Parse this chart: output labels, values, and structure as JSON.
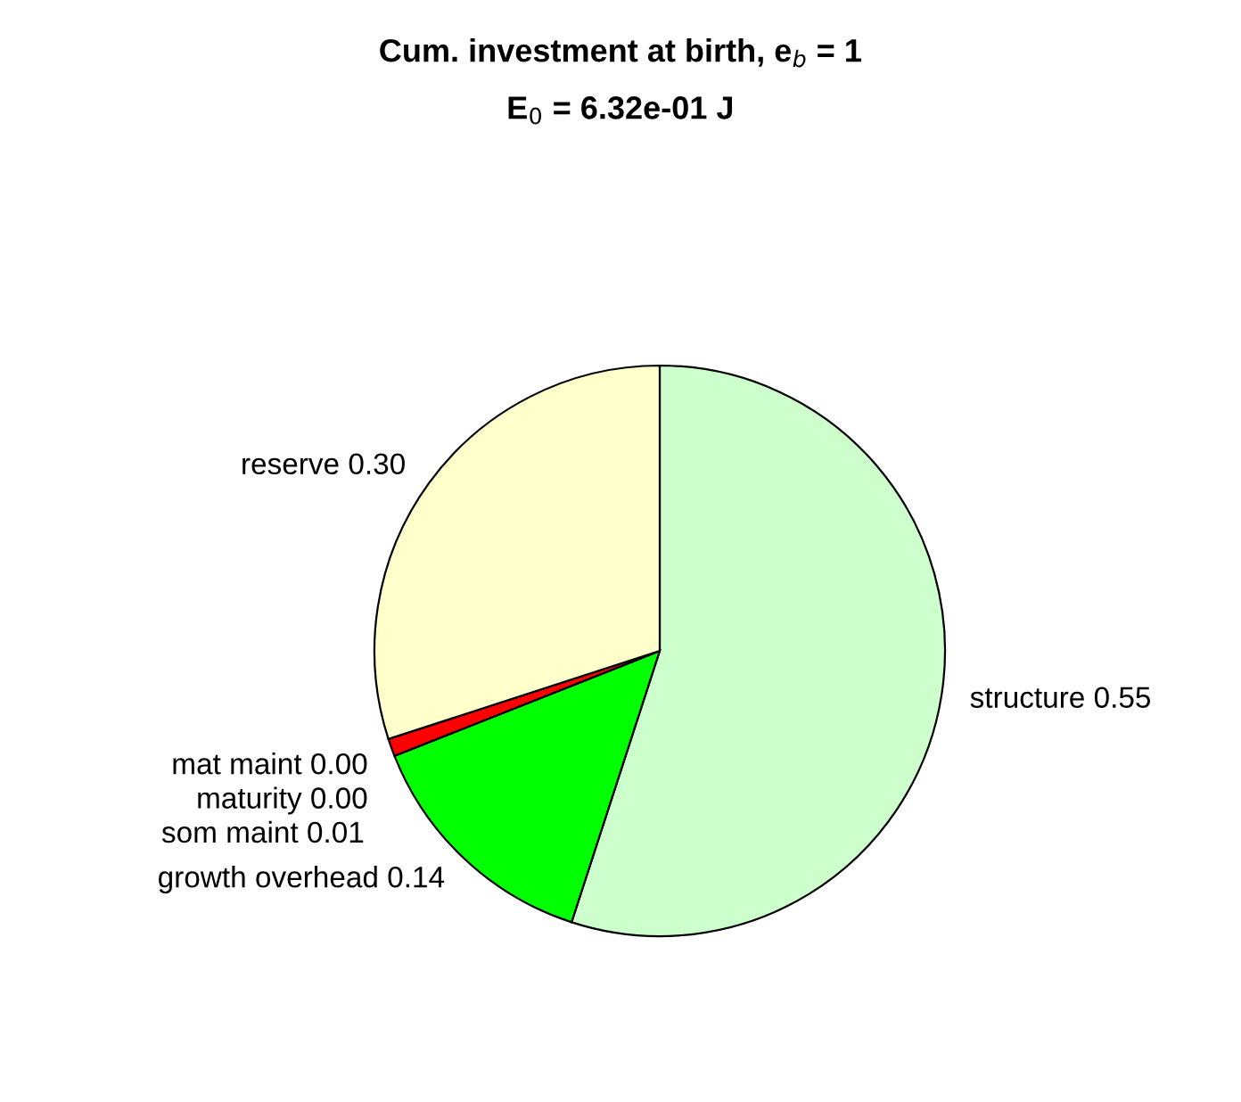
{
  "chart_data": {
    "type": "pie",
    "title": "Cum. investment at birth, e$_{b}$ = 1",
    "subtitle": "E$_{0}$ = 6.32e-01 J",
    "categories": [
      "structure 0.55",
      "growth overhead 0.14",
      "mat maint 0.00",
      "maturity 0.00",
      "som maint 0.01",
      "reserve 0.30"
    ],
    "values": [
      0.55,
      0.14,
      0.0,
      0.0,
      0.01,
      0.3
    ],
    "colors": [
      "#ccffcc",
      "#00ff00",
      "#0000ff",
      "#000080",
      "#ff0000",
      "#ffffcc"
    ]
  }
}
